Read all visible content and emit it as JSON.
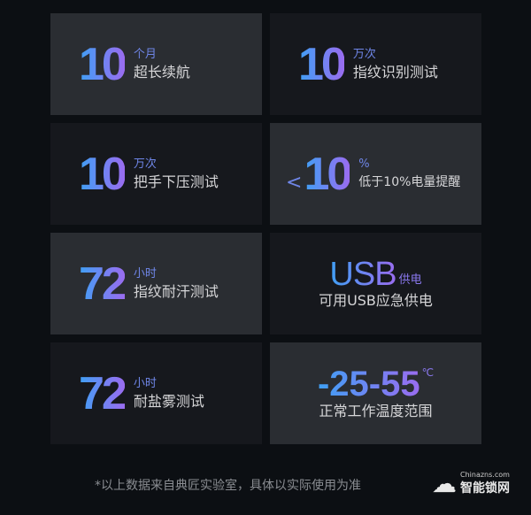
{
  "cards": [
    {
      "value": "10",
      "unit": "个月",
      "desc": "超长续航"
    },
    {
      "value": "10",
      "unit": "万次",
      "desc": "指纹识别测试"
    },
    {
      "value": "10",
      "unit": "万次",
      "desc": "把手下压测试"
    },
    {
      "prefix": "<",
      "value": "10",
      "unit": "%",
      "desc": "低于10%电量提醒"
    },
    {
      "value": "72",
      "unit": "小时",
      "desc": "指纹耐汗测试"
    },
    {
      "value": "USB",
      "unit": "供电",
      "desc": "可用USB应急供电"
    },
    {
      "value": "72",
      "unit": "小时",
      "desc": "耐盐雾测试"
    },
    {
      "value": "-25-55",
      "unit": "℃",
      "desc": "正常工作温度范围"
    }
  ],
  "note": "*以上数据来自典匠实验室，具体以实际使用为准",
  "watermark": {
    "domain": "Chinazns.com",
    "name": "智能锁网"
  },
  "colors": {
    "gradient_start": "#3fa0f5",
    "gradient_end": "#9a6cf0",
    "card_light": "#2a2d32",
    "card_dark": "#16181d"
  }
}
